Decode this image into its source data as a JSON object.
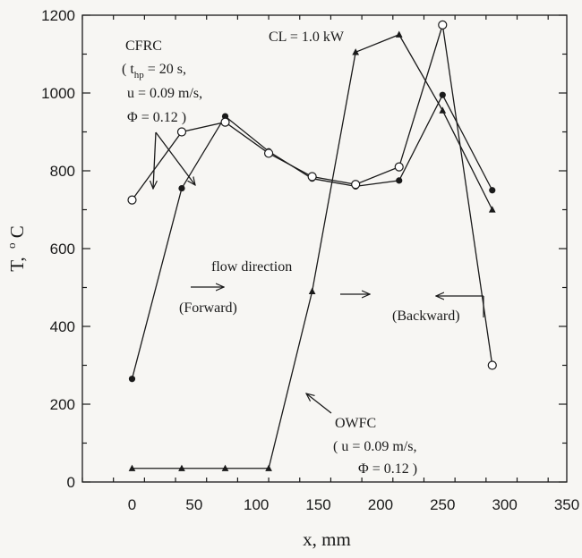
{
  "chart_data": {
    "type": "line",
    "title": "",
    "xlabel": "x, mm",
    "ylabel_main": "T,",
    "ylabel_sup": "o",
    "ylabel_unit": "C",
    "xlim": [
      -40,
      350
    ],
    "ylim": [
      0,
      1200
    ],
    "x_ticks": [
      0,
      50,
      100,
      150,
      200,
      250,
      300,
      350
    ],
    "y_ticks": [
      0,
      200,
      400,
      600,
      800,
      1000,
      1200
    ],
    "grid": false,
    "legend": "none",
    "series": [
      {
        "marker": "filled-circle",
        "x": [
          0,
          40,
          75,
          110,
          145,
          180,
          215,
          250,
          290
        ],
        "values": [
          265,
          755,
          940,
          850,
          780,
          760,
          775,
          995,
          750
        ]
      },
      {
        "marker": "open-circle",
        "x": [
          0,
          40,
          75,
          110,
          145,
          180,
          215,
          250,
          290
        ],
        "values": [
          725,
          900,
          925,
          845,
          785,
          765,
          810,
          1175,
          300
        ]
      },
      {
        "marker": "filled-triangle",
        "x": [
          0,
          40,
          75,
          110,
          145,
          180,
          215,
          250,
          290
        ],
        "values": [
          35,
          35,
          35,
          35,
          490,
          1105,
          1150,
          955,
          700
        ]
      }
    ],
    "annotations": {
      "cl": "CL = 1.0 kW",
      "cfrc": {
        "line1": "CFRC",
        "line2_pre": "( t",
        "line2_sub": "hp",
        "line2_post": " = 20 s,",
        "line3": "u = 0.09 m/s,",
        "line4": "Φ = 0.12 )"
      },
      "owfc": {
        "line1": "OWFC",
        "line2": "( u = 0.09 m/s,",
        "line3": "Φ = 0.12 )"
      },
      "flow_direction": "flow direction",
      "forward": "(Forward)",
      "backward": "(Backward)"
    }
  }
}
